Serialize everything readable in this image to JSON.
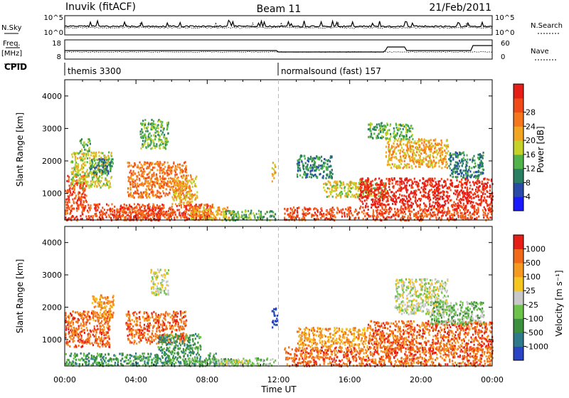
{
  "header": {
    "station": "Inuvik (fitACF)",
    "beam": "Beam 11",
    "date": "21/Feb/2011"
  },
  "params": {
    "nsky_label": "N.Sky",
    "nsky_ticks": [
      "10^5",
      "10^0"
    ],
    "nsearch_label": "N.Search",
    "nsearch_ticks": [
      "10^5",
      "10^0"
    ],
    "freq_label": "Freq.",
    "freq_unit": "[MHz]",
    "freq_ticks": [
      "18",
      "8"
    ],
    "nave_label": "Nave",
    "nave_ticks": [
      "60",
      "0"
    ],
    "cpid_label": "CPID",
    "cpid_segments": [
      {
        "text": "themis 3300",
        "start_hour": 0,
        "end_hour": 12
      },
      {
        "text": "normalsound (fast) 157",
        "start_hour": 12,
        "end_hour": 24
      }
    ]
  },
  "chart_data": [
    {
      "type": "heatmap",
      "name": "power",
      "xlabel": "",
      "ylabel": "Slant Range [km]",
      "xlim": [
        0,
        24
      ],
      "ylim": [
        180,
        4500
      ],
      "y_ticks": [
        "1000",
        "2000",
        "3000",
        "4000"
      ],
      "y_tick_values": [
        1000,
        2000,
        3000,
        4000
      ],
      "colorbar": {
        "label": "Power [dB]",
        "ticks": [
          "4",
          "8",
          "12",
          "16",
          "20",
          "24",
          "28"
        ],
        "colors": [
          "#1a1aff",
          "#2a4aa8",
          "#2a7f62",
          "#52b34a",
          "#c4d22a",
          "#f2a520",
          "#f5761c",
          "#f04a18",
          "#e61e18"
        ]
      },
      "regions": [
        {
          "x": [
            0.0,
            8.3
          ],
          "y": [
            200,
            700
          ],
          "level": 7
        },
        {
          "x": [
            0.0,
            1.2
          ],
          "y": [
            700,
            1600
          ],
          "level": 7
        },
        {
          "x": [
            0.3,
            2.6
          ],
          "y": [
            1200,
            2300
          ],
          "level": 4
        },
        {
          "x": [
            1.4,
            2.7
          ],
          "y": [
            1600,
            2100
          ],
          "level": 2
        },
        {
          "x": [
            0.8,
            1.4
          ],
          "y": [
            2300,
            2700
          ],
          "level": 3
        },
        {
          "x": [
            2.8,
            5.5
          ],
          "y": [
            200,
            600
          ],
          "level": 7
        },
        {
          "x": [
            3.5,
            6.8
          ],
          "y": [
            900,
            2000
          ],
          "level": 6
        },
        {
          "x": [
            4.2,
            5.8
          ],
          "y": [
            2400,
            3300
          ],
          "level": 3
        },
        {
          "x": [
            6.0,
            7.4
          ],
          "y": [
            700,
            1600
          ],
          "level": 5
        },
        {
          "x": [
            7.0,
            9.5
          ],
          "y": [
            200,
            600
          ],
          "level": 5
        },
        {
          "x": [
            8.8,
            11.8
          ],
          "y": [
            200,
            500
          ],
          "level": 3
        },
        {
          "x": [
            11.6,
            11.8
          ],
          "y": [
            1400,
            2000
          ],
          "level": 5
        },
        {
          "x": [
            12.3,
            24.0
          ],
          "y": [
            200,
            600
          ],
          "level": 7
        },
        {
          "x": [
            14.5,
            18.0
          ],
          "y": [
            900,
            1400
          ],
          "level": 4
        },
        {
          "x": [
            16.5,
            24.0
          ],
          "y": [
            600,
            1500
          ],
          "level": 8
        },
        {
          "x": [
            18.0,
            21.5
          ],
          "y": [
            1800,
            2700
          ],
          "level": 5
        },
        {
          "x": [
            21.5,
            23.5
          ],
          "y": [
            1500,
            2300
          ],
          "level": 2
        },
        {
          "x": [
            17.0,
            19.5
          ],
          "y": [
            2700,
            3200
          ],
          "level": 3
        },
        {
          "x": [
            13.0,
            15.0
          ],
          "y": [
            1500,
            2200
          ],
          "level": 2
        }
      ]
    },
    {
      "type": "heatmap",
      "name": "velocity",
      "xlabel": "Time UT",
      "ylabel": "Slant Range [km]",
      "xlim": [
        0,
        24
      ],
      "ylim": [
        180,
        4500
      ],
      "x_ticks": [
        "00:00",
        "04:00",
        "08:00",
        "12:00",
        "16:00",
        "20:00",
        "00:00"
      ],
      "x_tick_values": [
        0,
        4,
        8,
        12,
        16,
        20,
        24
      ],
      "y_ticks": [
        "1000",
        "2000",
        "3000",
        "4000"
      ],
      "y_tick_values": [
        1000,
        2000,
        3000,
        4000
      ],
      "colorbar": {
        "label": "Velocity [m s⁻¹]",
        "ticks": [
          "1000",
          "500",
          "100",
          "25",
          "-25",
          "-100",
          "-500",
          "-1000"
        ],
        "colors": [
          "#2a44c4",
          "#2f7a8a",
          "#3c8f3c",
          "#6cc24a",
          "#c8c8c8",
          "#f5c520",
          "#f59a20",
          "#f06a1a",
          "#e61e18"
        ]
      },
      "regions": [
        {
          "x": [
            0.0,
            2.5
          ],
          "y": [
            800,
            1900
          ],
          "level": 7
        },
        {
          "x": [
            1.5,
            2.7
          ],
          "y": [
            1600,
            2400
          ],
          "level": 6
        },
        {
          "x": [
            0.0,
            8.5
          ],
          "y": [
            200,
            600
          ],
          "level": 2
        },
        {
          "x": [
            3.4,
            6.8
          ],
          "y": [
            900,
            1900
          ],
          "level": 7
        },
        {
          "x": [
            5.2,
            7.6
          ],
          "y": [
            600,
            1200
          ],
          "level": 2
        },
        {
          "x": [
            4.8,
            5.8
          ],
          "y": [
            2400,
            3200
          ],
          "level": 4
        },
        {
          "x": [
            6.5,
            11.8
          ],
          "y": [
            200,
            450
          ],
          "level": 3
        },
        {
          "x": [
            8.5,
            10.5
          ],
          "y": [
            200,
            400
          ],
          "level": 4
        },
        {
          "x": [
            11.6,
            11.9
          ],
          "y": [
            1400,
            2000
          ],
          "level": 0
        },
        {
          "x": [
            12.3,
            24.0
          ],
          "y": [
            200,
            800
          ],
          "level": 7
        },
        {
          "x": [
            13.0,
            17.0
          ],
          "y": [
            800,
            1400
          ],
          "level": 6
        },
        {
          "x": [
            17.0,
            24.0
          ],
          "y": [
            700,
            1600
          ],
          "level": 7
        },
        {
          "x": [
            18.5,
            21.5
          ],
          "y": [
            1800,
            2900
          ],
          "level": 4
        },
        {
          "x": [
            20.5,
            23.5
          ],
          "y": [
            1500,
            2200
          ],
          "level": 3
        }
      ]
    }
  ]
}
